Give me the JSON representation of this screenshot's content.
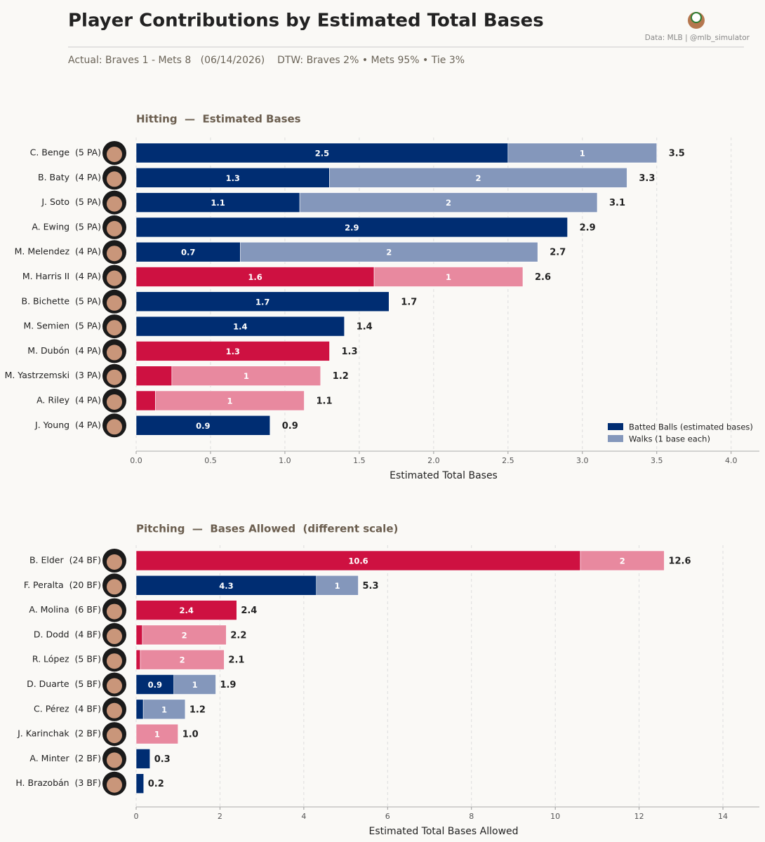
{
  "header": {
    "title": "Player Contributions by Estimated Total Bases",
    "source": "Data: MLB  |  @mlb_simulator",
    "subtitle": "Actual: Braves 1 - Mets 8   (06/14/2026)    DTW: Braves 2% • Mets 95% • Tie 3%"
  },
  "chart_data": [
    {
      "type": "stacked-bar-horizontal",
      "title": "Hitting  —  Estimated Bases",
      "xlabel": "Estimated Total Bases",
      "categories": [
        "C. Benge  (5 PA)",
        "B. Baty  (4 PA)",
        "J. Soto  (5 PA)",
        "A. Ewing  (5 PA)",
        "M. Melendez  (4 PA)",
        "M. Harris II  (4 PA)",
        "B. Bichette  (5 PA)",
        "M. Semien  (5 PA)",
        "M. Dubón  (4 PA)",
        "M. Yastrzemski  (3 PA)",
        "A. Riley  (4 PA)",
        "J. Young  (4 PA)"
      ],
      "series": [
        {
          "name": "Batted Balls (estimated bases)",
          "color": "#002d72",
          "values": [
            2.5,
            1.3,
            1.1,
            2.9,
            0.7,
            1.6,
            1.7,
            1.4,
            1.3,
            0.24,
            0.13,
            0.9
          ],
          "colors": [
            "#002d72",
            "#002d72",
            "#002d72",
            "#002d72",
            "#002d72",
            "#ce1141",
            "#002d72",
            "#002d72",
            "#ce1141",
            "#ce1141",
            "#ce1141",
            "#002d72"
          ]
        },
        {
          "name": "Walks (1 base each)",
          "color": "#8497bb",
          "values": [
            1,
            2,
            2,
            null,
            2,
            1,
            null,
            null,
            null,
            1,
            1,
            null
          ],
          "colors": [
            "#8497bb",
            "#8497bb",
            "#8497bb",
            "#8497bb",
            "#8497bb",
            "#e8899f",
            "#8497bb",
            "#8497bb",
            "#e8899f",
            "#e8899f",
            "#e8899f",
            "#8497bb"
          ]
        }
      ],
      "totals": [
        "3.5",
        "3.3",
        "3.1",
        "2.9",
        "2.7",
        "2.6",
        "1.7",
        "1.4",
        "1.3",
        "1.2",
        "1.1",
        "0.9"
      ],
      "xlim": [
        0,
        4.19
      ],
      "xticks": [
        {
          "value": 0,
          "label": "0.0"
        },
        {
          "value": 0.5,
          "label": "0.5"
        },
        {
          "value": 1,
          "label": "1.0"
        },
        {
          "value": 1.5,
          "label": "1.5"
        },
        {
          "value": 2,
          "label": "2.0"
        },
        {
          "value": 2.5,
          "label": "2.5"
        },
        {
          "value": 3,
          "label": "3.0"
        },
        {
          "value": 3.5,
          "label": "3.5"
        },
        {
          "value": 4,
          "label": "4.0"
        }
      ],
      "grid": true,
      "legend": "lower right"
    },
    {
      "type": "stacked-bar-horizontal",
      "title": "Pitching  —  Bases Allowed  (different scale)",
      "xlabel": "Estimated Total Bases Allowed",
      "categories": [
        "B. Elder  (24 BF)",
        "F. Peralta  (20 BF)",
        "A. Molina  (6 BF)",
        "D. Dodd  (4 BF)",
        "R. López  (5 BF)",
        "D. Duarte  (5 BF)",
        "C. Pérez  (4 BF)",
        "J. Karinchak  (2 BF)",
        "A. Minter  (2 BF)",
        "H. Brazobán  (3 BF)"
      ],
      "series": [
        {
          "name": "Batted Balls (estimated bases)",
          "color": "#002d72",
          "values": [
            10.6,
            4.3,
            2.4,
            0.15,
            0.1,
            0.9,
            0.17,
            null,
            0.33,
            0.18
          ],
          "colors": [
            "#ce1141",
            "#002d72",
            "#ce1141",
            "#ce1141",
            "#ce1141",
            "#002d72",
            "#002d72",
            "#ce1141",
            "#002d72",
            "#002d72"
          ]
        },
        {
          "name": "Walks (1 base each)",
          "color": "#8497bb",
          "values": [
            2,
            1,
            null,
            2,
            2,
            1,
            1,
            1,
            null,
            null
          ],
          "colors": [
            "#e8899f",
            "#8497bb",
            "#e8899f",
            "#e8899f",
            "#e8899f",
            "#8497bb",
            "#8497bb",
            "#e8899f",
            "#8497bb",
            "#8497bb"
          ]
        }
      ],
      "totals": [
        "12.6",
        "5.3",
        "2.4",
        "2.2",
        "2.1",
        "1.9",
        "1.2",
        "1.0",
        "0.3",
        "0.2"
      ],
      "xlim": [
        0,
        14.87
      ],
      "xticks": [
        0,
        2,
        4,
        6,
        8,
        10,
        12,
        14
      ],
      "grid": true
    }
  ]
}
